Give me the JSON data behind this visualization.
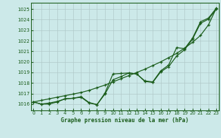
{
  "title": "Graphe pression niveau de la mer (hPa)",
  "background_color": "#cce9e9",
  "grid_color": "#b0c8c8",
  "line_color": "#1a5c1a",
  "marker_color": "#1a5c1a",
  "xlim": [
    -0.3,
    23.3
  ],
  "ylim": [
    1015.4,
    1025.6
  ],
  "yticks": [
    1016,
    1017,
    1018,
    1019,
    1020,
    1021,
    1022,
    1023,
    1024,
    1025
  ],
  "xticks": [
    0,
    1,
    2,
    3,
    4,
    5,
    6,
    7,
    8,
    9,
    10,
    11,
    12,
    13,
    14,
    15,
    16,
    17,
    18,
    19,
    20,
    21,
    22,
    23
  ],
  "hours": [
    0,
    1,
    2,
    3,
    4,
    5,
    6,
    7,
    8,
    9,
    10,
    11,
    12,
    13,
    14,
    15,
    16,
    17,
    18,
    19,
    20,
    21,
    22,
    23
  ],
  "line_straight": [
    1016.2,
    1016.35,
    1016.5,
    1016.65,
    1016.8,
    1016.95,
    1017.1,
    1017.3,
    1017.55,
    1017.8,
    1018.1,
    1018.4,
    1018.7,
    1019.0,
    1019.3,
    1019.65,
    1020.0,
    1020.4,
    1020.8,
    1021.3,
    1021.85,
    1022.5,
    1023.5,
    1025.1
  ],
  "line_mid": [
    1016.2,
    1016.0,
    1016.1,
    1016.25,
    1016.5,
    1016.55,
    1016.7,
    1016.15,
    1015.95,
    1016.95,
    1018.3,
    1018.6,
    1018.95,
    1018.85,
    1018.2,
    1018.1,
    1019.15,
    1019.7,
    1021.35,
    1021.25,
    1022.25,
    1023.8,
    1024.15,
    1025.1
  ],
  "line_low": [
    1016.2,
    1016.0,
    1016.0,
    1016.2,
    1016.5,
    1016.55,
    1016.65,
    1016.1,
    1015.95,
    1017.05,
    1018.85,
    1018.9,
    1018.95,
    1018.85,
    1018.15,
    1018.05,
    1019.05,
    1019.55,
    1020.55,
    1021.15,
    1022.15,
    1023.65,
    1024.05,
    1025.0
  ]
}
